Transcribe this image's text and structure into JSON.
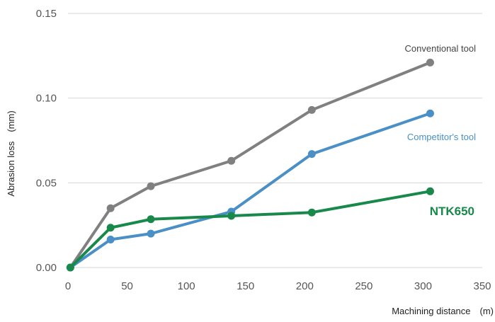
{
  "chart_data": {
    "type": "line",
    "title": "",
    "xlabel": "Machining distance　(m)",
    "ylabel": "Abrasion loss　(mm)",
    "xlim": [
      0,
      350
    ],
    "ylim": [
      0,
      0.15
    ],
    "x_ticks": [
      "0",
      "50",
      "100",
      "150",
      "200",
      "250",
      "300",
      "350"
    ],
    "y_ticks": [
      "0.00",
      "0.05",
      "0.10",
      "0.15"
    ],
    "grid": "horizontal",
    "series": [
      {
        "name": "Conventional tool",
        "color": "#808080",
        "label_style": "normal",
        "points": [
          [
            2,
            0.0
          ],
          [
            36,
            0.035
          ],
          [
            70,
            0.048
          ],
          [
            138,
            0.063
          ],
          [
            206,
            0.093
          ],
          [
            306,
            0.121
          ]
        ]
      },
      {
        "name": "Competitor's tool",
        "color": "#4a90c6",
        "label_style": "normal",
        "points": [
          [
            2,
            0.0
          ],
          [
            36,
            0.0165
          ],
          [
            70,
            0.02
          ],
          [
            138,
            0.033
          ],
          [
            206,
            0.067
          ],
          [
            306,
            0.091
          ]
        ]
      },
      {
        "name": "NTK650",
        "color": "#18894a",
        "label_style": "bold",
        "points": [
          [
            2,
            0.0
          ],
          [
            36,
            0.0235
          ],
          [
            70,
            0.0285
          ],
          [
            138,
            0.0305
          ],
          [
            206,
            0.0325
          ],
          [
            306,
            0.045
          ]
        ]
      }
    ]
  }
}
